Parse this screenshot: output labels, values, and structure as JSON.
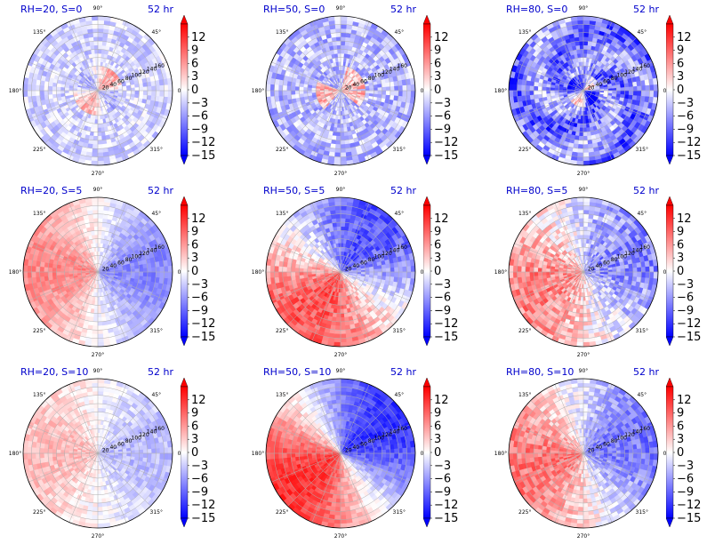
{
  "chart_data": [
    {
      "type": "heatmap",
      "title": "RH=20, S=0",
      "time": "52 hr",
      "pattern": "rh20s0"
    },
    {
      "type": "heatmap",
      "title": "RH=50, S=0",
      "time": "52 hr",
      "pattern": "rh50s0"
    },
    {
      "type": "heatmap",
      "title": "RH=80, S=0",
      "time": "52 hr",
      "pattern": "rh80s0"
    },
    {
      "type": "heatmap",
      "title": "RH=20, S=5",
      "time": "52 hr",
      "pattern": "rh20s5"
    },
    {
      "type": "heatmap",
      "title": "RH=50, S=5",
      "time": "52 hr",
      "pattern": "rh50s5"
    },
    {
      "type": "heatmap",
      "title": "RH=80, S=5",
      "time": "52 hr",
      "pattern": "rh80s5"
    },
    {
      "type": "heatmap",
      "title": "RH=20, S=10",
      "time": "52 hr",
      "pattern": "rh20s10"
    },
    {
      "type": "heatmap",
      "title": "RH=50, S=10",
      "time": "52 hr",
      "pattern": "rh50s10"
    },
    {
      "type": "heatmap",
      "title": "RH=80, S=10",
      "time": "52 hr",
      "pattern": "rh80s10"
    }
  ],
  "angle_ticks": [
    "0°",
    "45°",
    "90°",
    "135°",
    "180°",
    "225°",
    "270°",
    "315°"
  ],
  "radial_ticks": [
    "20",
    "40",
    "60",
    "80",
    "100",
    "120",
    "140",
    "160"
  ],
  "colorbar": {
    "ticks": [
      "12",
      "9",
      "6",
      "3",
      "0",
      "−3",
      "−6",
      "−9",
      "−12",
      "−15"
    ],
    "vmin": -15,
    "vmax": 15,
    "extend": "both",
    "colors": {
      "low": "#0000ff",
      "mid": "#ffffff",
      "high": "#ff0000"
    }
  }
}
